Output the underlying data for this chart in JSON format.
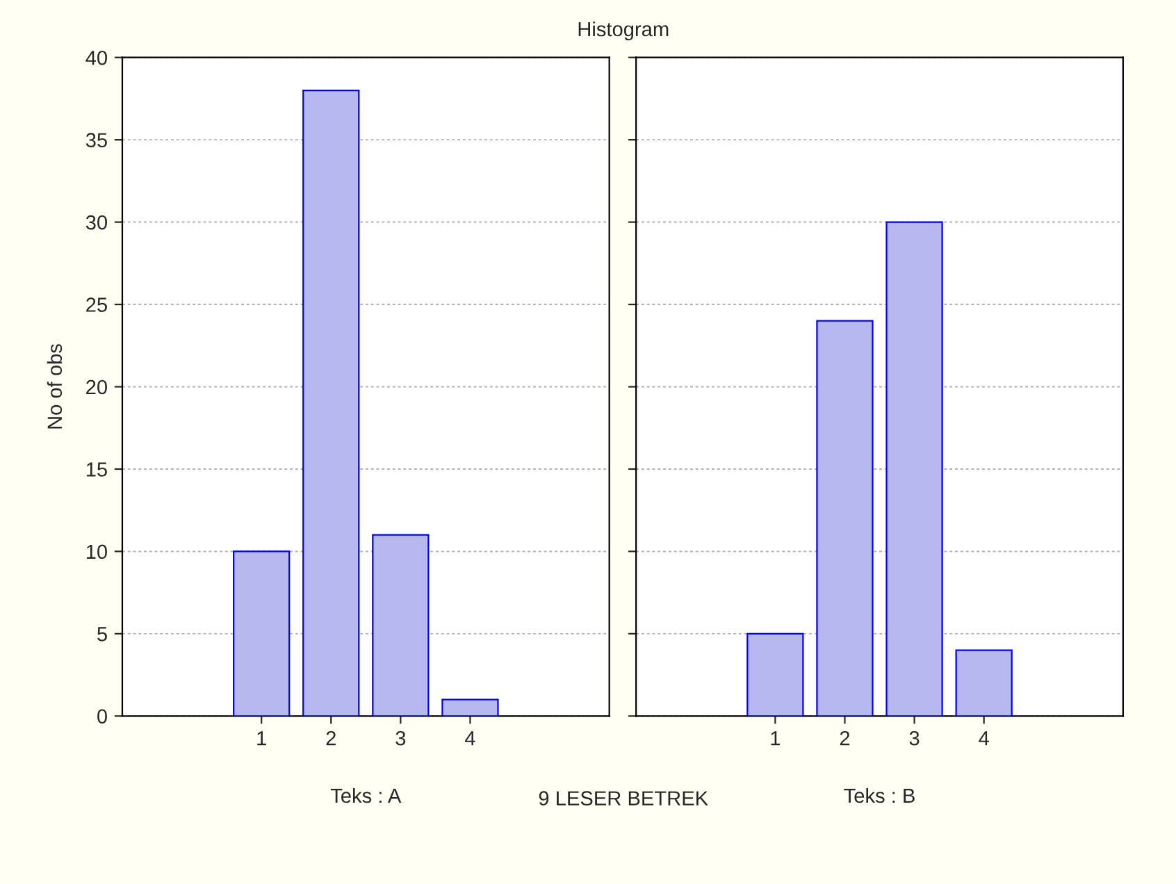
{
  "chart_data": [
    {
      "type": "bar",
      "xlabel": "Teks : A",
      "ylabel": "No of obs",
      "annotations": [
        "Histogram",
        "9 LESER BETREK"
      ],
      "categories": [
        "1",
        "2",
        "3",
        "4"
      ],
      "values": [
        10,
        38,
        11,
        1
      ],
      "color": "#b8b8f0",
      "ylim": [
        0,
        40
      ],
      "yticks": [
        0,
        5,
        10,
        15,
        20,
        25,
        30,
        35,
        40
      ],
      "grid": "y"
    },
    {
      "type": "bar",
      "xlabel": "Teks : B",
      "categories": [
        "1",
        "2",
        "3",
        "4"
      ],
      "values": [
        5,
        24,
        30,
        4
      ],
      "color": "#b8b8f0",
      "ylim": [
        0,
        40
      ],
      "yticks": [
        0,
        5,
        10,
        15,
        20,
        25,
        30,
        35,
        40
      ],
      "grid": "y",
      "tick_labels": "x"
    }
  ]
}
